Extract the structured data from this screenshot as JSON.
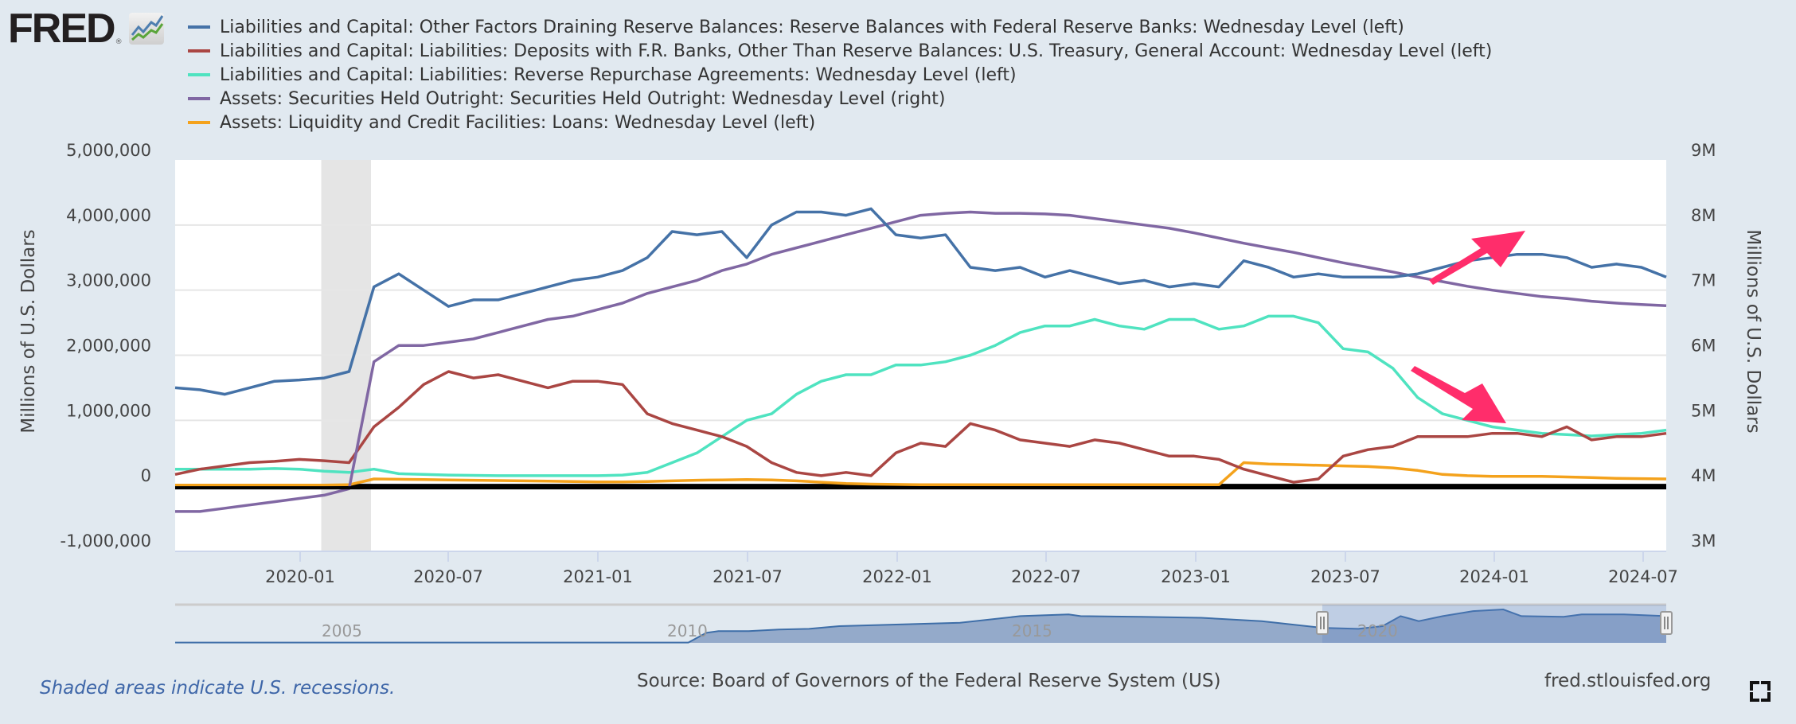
{
  "logo": {
    "text": "FRED",
    "reg": "®",
    "icon": "chart-line-icon"
  },
  "footer": {
    "note": "Shaded areas indicate U.S. recessions.",
    "source": "Source: Board of Governors of the Federal Reserve System (US)",
    "site": "fred.stlouisfed.org",
    "fullscreen_icon": "fullscreen-icon"
  },
  "chart_data": {
    "type": "line",
    "title": "",
    "xlabel": "",
    "ylabel": "Millions of U.S. Dollars",
    "ylabel_right": "Millions of U.S. Dollars",
    "ylim": [
      -1000000,
      5000000
    ],
    "ylim_right": [
      3000000,
      9000000
    ],
    "yticks": [
      "5,000,000",
      "4,000,000",
      "3,000,000",
      "2,000,000",
      "1,000,000",
      "0",
      "-1,000,000"
    ],
    "yticks_right": [
      "9M",
      "8M",
      "7M",
      "6M",
      "5M",
      "4M",
      "3M"
    ],
    "xlim": [
      "2019-08",
      "2024-08"
    ],
    "xticks": [
      "2020-01",
      "2020-07",
      "2021-01",
      "2021-07",
      "2022-01",
      "2022-07",
      "2023-01",
      "2023-07",
      "2024-01",
      "2024-07"
    ],
    "grid": true,
    "legend_position": "top",
    "recessions": [
      [
        "2020-02",
        "2020-04"
      ]
    ],
    "navigator": {
      "labels": [
        "2005",
        "2010",
        "2015",
        "2020"
      ],
      "selected_range": [
        "2019-08",
        "2024-08"
      ]
    },
    "annotations": [
      {
        "type": "arrow",
        "color": "#ff2d6b",
        "pointing": "up-right",
        "near_series": "Reserve Balances with Federal Reserve Banks",
        "date": "2024-01"
      },
      {
        "type": "arrow",
        "color": "#ff2d6b",
        "pointing": "down-right",
        "near_series": "Reverse Repurchase Agreements",
        "date": "2024-01"
      }
    ],
    "x": [
      "2019-08",
      "2019-09",
      "2019-10",
      "2019-11",
      "2019-12",
      "2020-01",
      "2020-02",
      "2020-03",
      "2020-04",
      "2020-05",
      "2020-06",
      "2020-07",
      "2020-08",
      "2020-09",
      "2020-10",
      "2020-11",
      "2020-12",
      "2021-01",
      "2021-02",
      "2021-03",
      "2021-04",
      "2021-05",
      "2021-06",
      "2021-07",
      "2021-08",
      "2021-09",
      "2021-10",
      "2021-11",
      "2021-12",
      "2022-01",
      "2022-02",
      "2022-03",
      "2022-04",
      "2022-05",
      "2022-06",
      "2022-07",
      "2022-08",
      "2022-09",
      "2022-10",
      "2022-11",
      "2022-12",
      "2023-01",
      "2023-02",
      "2023-03",
      "2023-04",
      "2023-05",
      "2023-06",
      "2023-07",
      "2023-08",
      "2023-09",
      "2023-10",
      "2023-11",
      "2023-12",
      "2024-01",
      "2024-02",
      "2024-03",
      "2024-04",
      "2024-05",
      "2024-06",
      "2024-07",
      "2024-08"
    ],
    "series": [
      {
        "name": "Liabilities and Capital: Other Factors Draining Reserve Balances: Reserve Balances with Federal Reserve Banks: Wednesday Level (left)",
        "color": "#4572a7",
        "axis": "left",
        "values": [
          1500000,
          1470000,
          1400000,
          1500000,
          1600000,
          1620000,
          1650000,
          1750000,
          3050000,
          3250000,
          3000000,
          2750000,
          2850000,
          2850000,
          2950000,
          3050000,
          3150000,
          3200000,
          3300000,
          3500000,
          3900000,
          3850000,
          3900000,
          3500000,
          4000000,
          4200000,
          4200000,
          4150000,
          4250000,
          3850000,
          3800000,
          3850000,
          3350000,
          3300000,
          3350000,
          3200000,
          3300000,
          3200000,
          3100000,
          3150000,
          3050000,
          3100000,
          3050000,
          3450000,
          3350000,
          3200000,
          3250000,
          3200000,
          3200000,
          3200000,
          3250000,
          3350000,
          3450000,
          3500000,
          3550000,
          3550000,
          3500000,
          3350000,
          3400000,
          3350000,
          3200000
        ]
      },
      {
        "name": "Liabilities and Capital: Liabilities: Deposits with F.R. Banks, Other Than Reserve Balances: U.S. Treasury, General Account: Wednesday Level (left)",
        "color": "#aa4643",
        "axis": "left",
        "values": [
          170000,
          250000,
          300000,
          350000,
          370000,
          400000,
          380000,
          350000,
          900000,
          1200000,
          1550000,
          1750000,
          1650000,
          1700000,
          1600000,
          1500000,
          1600000,
          1600000,
          1550000,
          1100000,
          950000,
          850000,
          750000,
          600000,
          350000,
          200000,
          150000,
          200000,
          150000,
          500000,
          650000,
          600000,
          950000,
          850000,
          700000,
          650000,
          600000,
          700000,
          650000,
          550000,
          450000,
          450000,
          400000,
          250000,
          150000,
          50000,
          100000,
          450000,
          550000,
          600000,
          750000,
          750000,
          750000,
          800000,
          800000,
          750000,
          900000,
          700000,
          750000,
          750000,
          800000
        ]
      },
      {
        "name": "Liabilities and Capital: Liabilities: Reverse Repurchase Agreements: Wednesday Level (left)",
        "color": "#4fe3c0",
        "axis": "left",
        "values": [
          250000,
          250000,
          250000,
          250000,
          260000,
          250000,
          220000,
          200000,
          250000,
          180000,
          170000,
          160000,
          155000,
          150000,
          150000,
          150000,
          150000,
          150000,
          160000,
          200000,
          350000,
          500000,
          750000,
          1000000,
          1100000,
          1400000,
          1600000,
          1700000,
          1700000,
          1850000,
          1850000,
          1900000,
          2000000,
          2150000,
          2350000,
          2450000,
          2450000,
          2550000,
          2450000,
          2400000,
          2550000,
          2550000,
          2400000,
          2450000,
          2600000,
          2600000,
          2500000,
          2100000,
          2050000,
          1800000,
          1350000,
          1100000,
          1000000,
          900000,
          850000,
          800000,
          780000,
          760000,
          780000,
          800000,
          850000
        ]
      },
      {
        "name": "Assets: Securities Held Outright: Securities Held Outright: Wednesday Level (right)",
        "color": "#8067a3",
        "axis": "right",
        "values": [
          3600000,
          3600000,
          3650000,
          3700000,
          3750000,
          3800000,
          3850000,
          3950000,
          5900000,
          6150000,
          6150000,
          6200000,
          6250000,
          6350000,
          6450000,
          6550000,
          6600000,
          6700000,
          6800000,
          6950000,
          7050000,
          7150000,
          7300000,
          7400000,
          7550000,
          7650000,
          7750000,
          7850000,
          7950000,
          8050000,
          8150000,
          8180000,
          8200000,
          8180000,
          8180000,
          8170000,
          8150000,
          8100000,
          8050000,
          8000000,
          7950000,
          7880000,
          7800000,
          7720000,
          7650000,
          7580000,
          7500000,
          7420000,
          7350000,
          7280000,
          7200000,
          7130000,
          7060000,
          7000000,
          6950000,
          6900000,
          6870000,
          6830000,
          6800000,
          6780000,
          6760000
        ]
      },
      {
        "name": "Assets: Liquidity and Credit Facilities: Loans: Wednesday Level (left)",
        "color": "#f4a21c",
        "axis": "left",
        "values": [
          5000,
          5000,
          5000,
          5000,
          5000,
          5000,
          5000,
          10000,
          100000,
          95000,
          90000,
          85000,
          80000,
          75000,
          70000,
          65000,
          60000,
          55000,
          55000,
          60000,
          70000,
          80000,
          85000,
          90000,
          85000,
          70000,
          50000,
          30000,
          20000,
          15000,
          12000,
          10000,
          10000,
          10000,
          10000,
          10000,
          10000,
          10000,
          10000,
          10000,
          10000,
          10000,
          10000,
          350000,
          330000,
          320000,
          310000,
          300000,
          290000,
          270000,
          230000,
          170000,
          150000,
          140000,
          140000,
          140000,
          130000,
          120000,
          110000,
          105000,
          100000
        ]
      }
    ]
  }
}
